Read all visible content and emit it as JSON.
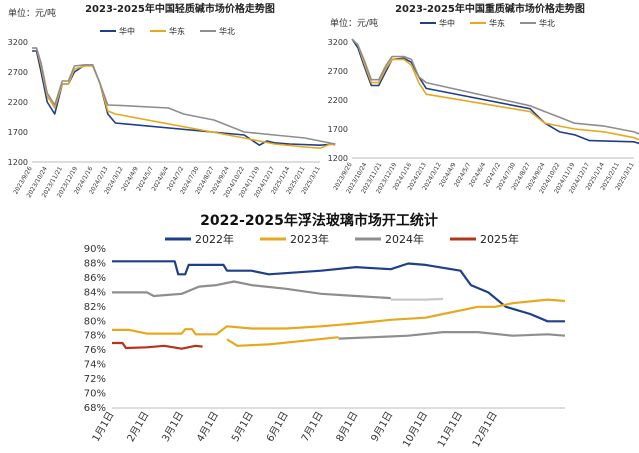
{
  "colors": {
    "huazhong": "#1F3F8C",
    "huadong": "#E8A81E",
    "huabei": "#8E8E8E",
    "y2022": "#1F3F8C",
    "y2023": "#E8A81E",
    "y2024": "#8E8E8E",
    "y2025": "#B5341A",
    "y2024_late": "#C8C8C8"
  },
  "chart_data": [
    {
      "id": "light",
      "type": "line",
      "title": "2023-2025年中国轻质碱市场价格走势图",
      "unit_label": "单位：元/吨",
      "ylim": [
        1200,
        3200
      ],
      "yticks": [
        1200,
        1700,
        2200,
        2700,
        3200
      ],
      "xticks": [
        "2023/9/26",
        "2023/10/24",
        "2023/11/21",
        "2023/12/19",
        "2024/1/16",
        "2024/2/13",
        "2024/3/12",
        "2024/4/9",
        "2024/5/7",
        "2024/6/4",
        "2024/7/2",
        "2024/7/30",
        "2024/8/27",
        "2024/9/24",
        "2024/10/22",
        "2024/11/19",
        "2024/12/17",
        "2025/1/14",
        "2025/2/11",
        "2025/3/11"
      ],
      "legend": [
        "华中",
        "华东",
        "华北"
      ],
      "series": [
        {
          "name": "华中",
          "color_key": "huazhong",
          "points": [
            [
              0,
              3050
            ],
            [
              0.3,
              3050
            ],
            [
              0.6,
              2700
            ],
            [
              1.0,
              2200
            ],
            [
              1.5,
              2000
            ],
            [
              2.0,
              2500
            ],
            [
              2.4,
              2500
            ],
            [
              2.8,
              2700
            ],
            [
              3.5,
              2820
            ],
            [
              4.0,
              2820
            ],
            [
              4.5,
              2500
            ],
            [
              5.0,
              2000
            ],
            [
              5.5,
              1850
            ],
            [
              14,
              1650
            ],
            [
              15,
              1480
            ],
            [
              15.5,
              1550
            ],
            [
              16,
              1520
            ],
            [
              17,
              1500
            ],
            [
              19,
              1480
            ],
            [
              20,
              1500
            ]
          ]
        },
        {
          "name": "华东",
          "color_key": "huadong",
          "points": [
            [
              0,
              3100
            ],
            [
              0.3,
              3100
            ],
            [
              0.6,
              2800
            ],
            [
              1.0,
              2300
            ],
            [
              1.5,
              2100
            ],
            [
              2.0,
              2500
            ],
            [
              2.4,
              2500
            ],
            [
              2.8,
              2750
            ],
            [
              3.5,
              2800
            ],
            [
              4.0,
              2800
            ],
            [
              4.5,
              2500
            ],
            [
              5.0,
              2050
            ],
            [
              5.5,
              2000
            ],
            [
              14,
              1600
            ],
            [
              15,
              1550
            ],
            [
              16,
              1500
            ],
            [
              18,
              1450
            ],
            [
              19,
              1430
            ],
            [
              19.7,
              1500
            ],
            [
              20,
              1480
            ]
          ]
        },
        {
          "name": "华北",
          "color_key": "huabei",
          "points": [
            [
              0,
              3100
            ],
            [
              0.3,
              3100
            ],
            [
              0.6,
              2850
            ],
            [
              1.0,
              2350
            ],
            [
              1.5,
              2150
            ],
            [
              2.0,
              2550
            ],
            [
              2.4,
              2550
            ],
            [
              2.8,
              2800
            ],
            [
              3.5,
              2820
            ],
            [
              4.0,
              2820
            ],
            [
              4.5,
              2500
            ],
            [
              5.0,
              2150
            ],
            [
              6.0,
              2140
            ],
            [
              9,
              2100
            ],
            [
              10,
              2000
            ],
            [
              12,
              1900
            ],
            [
              13,
              1800
            ],
            [
              14,
              1700
            ],
            [
              16,
              1650
            ],
            [
              18,
              1600
            ],
            [
              19,
              1550
            ],
            [
              20,
              1500
            ]
          ]
        }
      ]
    },
    {
      "id": "heavy",
      "type": "line",
      "title": "2023-2025年中国重质碱市场价格走势图",
      "unit_label": "单位：元/吨",
      "ylim": [
        1200,
        3200
      ],
      "yticks": [
        1200,
        1700,
        2200,
        2700,
        3200
      ],
      "xticks": [
        "2023/9/26",
        "2023/10/24",
        "2023/11/21",
        "2023/12/19",
        "2024/1/16",
        "2024/2/13",
        "2024/3/12",
        "2024/4/9",
        "2024/5/7",
        "2024/6/4",
        "2024/7/2",
        "2024/7/30",
        "2024/8/27",
        "2024/9/24",
        "2024/10/22",
        "2024/11/19",
        "2024/12/17",
        "2025/1/14",
        "2025/2/11",
        "2025/3/11"
      ],
      "legend": [
        "华中",
        "华东",
        "华北"
      ],
      "series": [
        {
          "name": "华中",
          "color_key": "huazhong",
          "points": [
            [
              0,
              3250
            ],
            [
              0.4,
              3100
            ],
            [
              0.8,
              2800
            ],
            [
              1.3,
              2450
            ],
            [
              1.8,
              2450
            ],
            [
              2.3,
              2700
            ],
            [
              2.7,
              2900
            ],
            [
              3.5,
              2920
            ],
            [
              4.0,
              2850
            ],
            [
              4.5,
              2600
            ],
            [
              5.0,
              2400
            ],
            [
              12,
              2050
            ],
            [
              13,
              1800
            ],
            [
              14,
              1650
            ],
            [
              15,
              1600
            ],
            [
              16,
              1500
            ],
            [
              19,
              1480
            ],
            [
              20,
              1400
            ]
          ]
        },
        {
          "name": "华东",
          "color_key": "huadong",
          "points": [
            [
              0,
              3250
            ],
            [
              0.4,
              3150
            ],
            [
              0.8,
              2850
            ],
            [
              1.3,
              2500
            ],
            [
              1.8,
              2500
            ],
            [
              2.3,
              2750
            ],
            [
              2.7,
              2900
            ],
            [
              3.5,
              2900
            ],
            [
              4.0,
              2800
            ],
            [
              4.5,
              2500
            ],
            [
              5.0,
              2300
            ],
            [
              12,
              2000
            ],
            [
              13,
              1800
            ],
            [
              14,
              1750
            ],
            [
              15,
              1700
            ],
            [
              17,
              1650
            ],
            [
              18,
              1600
            ],
            [
              19,
              1550
            ],
            [
              20,
              1450
            ]
          ]
        },
        {
          "name": "华北",
          "color_key": "huabei",
          "points": [
            [
              0,
              3250
            ],
            [
              0.4,
              3150
            ],
            [
              0.8,
              2900
            ],
            [
              1.3,
              2550
            ],
            [
              1.8,
              2550
            ],
            [
              2.3,
              2800
            ],
            [
              2.7,
              2950
            ],
            [
              3.5,
              2950
            ],
            [
              4.0,
              2900
            ],
            [
              4.5,
              2600
            ],
            [
              5.0,
              2500
            ],
            [
              12,
              2100
            ],
            [
              13,
              2000
            ],
            [
              14,
              1900
            ],
            [
              15,
              1800
            ],
            [
              17,
              1750
            ],
            [
              18,
              1700
            ],
            [
              19,
              1650
            ],
            [
              20,
              1550
            ]
          ]
        }
      ]
    },
    {
      "id": "glass",
      "type": "line",
      "title": "2022-2025年浮法玻璃市场开工统计",
      "ylim": [
        68,
        90
      ],
      "yticks": [
        "68%",
        "70%",
        "72%",
        "74%",
        "76%",
        "78%",
        "80%",
        "82%",
        "84%",
        "86%",
        "88%",
        "90%"
      ],
      "xticks": [
        "1月1日",
        "2月1日",
        "3月1日",
        "4月1日",
        "5月1日",
        "6月1日",
        "7月1日",
        "8月1日",
        "9月1日",
        "10月1日",
        "11月1日",
        "12月1日"
      ],
      "legend": [
        "2022年",
        "2023年",
        "2024年",
        "2025年"
      ],
      "series": [
        {
          "name": "2022年",
          "color_key": "y2022",
          "points": [
            [
              0,
              88.3
            ],
            [
              1.8,
              88.3
            ],
            [
              1.9,
              86.5
            ],
            [
              2.1,
              86.5
            ],
            [
              2.2,
              87.8
            ],
            [
              3.2,
              87.8
            ],
            [
              3.3,
              87
            ],
            [
              4,
              87
            ],
            [
              4.5,
              86.5
            ],
            [
              6,
              87
            ],
            [
              7,
              87.5
            ],
            [
              8,
              87.2
            ],
            [
              8.5,
              88
            ],
            [
              9,
              87.8
            ],
            [
              10,
              87
            ],
            [
              10.3,
              85
            ],
            [
              10.8,
              84
            ],
            [
              11.3,
              82
            ],
            [
              12,
              81
            ],
            [
              12.5,
              80
            ],
            [
              13,
              80
            ]
          ]
        },
        {
          "name": "2023年",
          "color_key": "y2023",
          "points": [
            [
              0,
              78.8
            ],
            [
              0.5,
              78.8
            ],
            [
              1,
              78.3
            ],
            [
              2.0,
              78.3
            ],
            [
              2.1,
              78.9
            ],
            [
              2.3,
              78.9
            ],
            [
              2.4,
              78.2
            ],
            [
              3,
              78.2
            ],
            [
              3.3,
              79.3
            ],
            [
              4,
              79
            ],
            [
              5,
              79
            ],
            [
              6,
              79.3
            ],
            [
              7,
              79.7
            ],
            [
              8,
              80.2
            ],
            [
              9,
              80.5
            ],
            [
              9.5,
              81
            ],
            [
              10,
              81.5
            ],
            [
              10.5,
              82
            ],
            [
              11,
              82
            ],
            [
              11.5,
              82.5
            ],
            [
              12.5,
              83
            ],
            [
              13,
              82.8
            ]
          ]
        },
        {
          "name": "2024年",
          "color_key": "y2024",
          "points": [
            [
              0,
              84
            ],
            [
              1,
              84
            ],
            [
              1.2,
              83.5
            ],
            [
              2,
              83.8
            ],
            [
              2.5,
              84.8
            ],
            [
              3,
              85
            ],
            [
              3.5,
              85.5
            ],
            [
              4,
              85
            ],
            [
              5,
              84.5
            ],
            [
              6,
              83.8
            ],
            [
              7,
              83.5
            ],
            [
              8,
              83.2
            ]
          ]
        },
        {
          "name": "2024年（续）",
          "color_key": "y2024_late",
          "points": [
            [
              8,
              83
            ],
            [
              9,
              83
            ],
            [
              9.5,
              83.1
            ]
          ]
        },
        {
          "name": "2023年（续）",
          "color_key": "y2023",
          "points": [
            [
              3.3,
              77.5
            ],
            [
              3.6,
              76.6
            ],
            [
              4.5,
              76.8
            ],
            [
              5.5,
              77.3
            ],
            [
              6.5,
              77.8
            ]
          ]
        },
        {
          "name": "2024年（尾）",
          "color_key": "y2024",
          "points": [
            [
              6.5,
              77.6
            ],
            [
              7.5,
              77.8
            ],
            [
              8.5,
              78
            ],
            [
              9.5,
              78.5
            ],
            [
              10.5,
              78.5
            ],
            [
              11.5,
              78
            ],
            [
              12.5,
              78.2
            ],
            [
              13,
              78
            ]
          ]
        },
        {
          "name": "2025年",
          "color_key": "y2025",
          "points": [
            [
              0,
              77
            ],
            [
              0.3,
              77
            ],
            [
              0.4,
              76.3
            ],
            [
              1,
              76.4
            ],
            [
              1.5,
              76.6
            ],
            [
              2,
              76.2
            ],
            [
              2.4,
              76.6
            ],
            [
              2.6,
              76.5
            ]
          ]
        }
      ]
    }
  ]
}
